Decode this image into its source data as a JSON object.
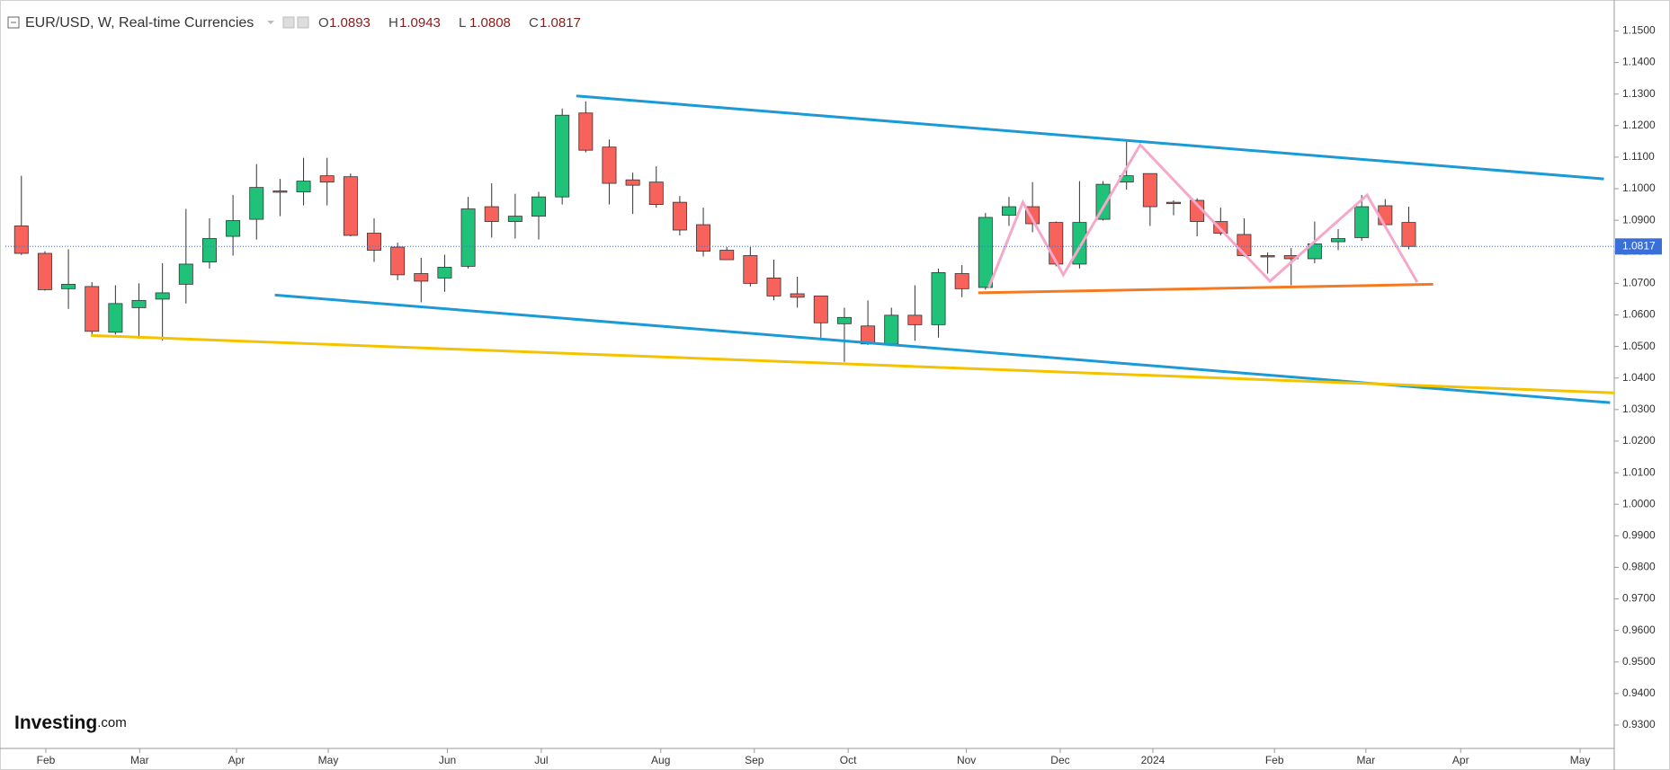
{
  "chart_data": {
    "type": "candlestick",
    "title": "EUR/USD, W, Real-time Currencies",
    "ohlc_labels": [
      "O",
      "H",
      "L",
      "C"
    ],
    "watermark": [
      "Investing",
      ".com"
    ],
    "up_color": "#20c27a",
    "down_color": "#f7625b",
    "open": [
      1.0882,
      1.0795,
      1.0683,
      1.069,
      1.0545,
      1.0623,
      1.065,
      1.0697,
      1.0768,
      1.0849,
      1.0903,
      1.0993,
      1.099,
      1.1041,
      1.1038,
      1.0859,
      1.0815,
      1.0731,
      1.0717,
      1.0754,
      1.0943,
      1.0896,
      1.0913,
      1.0974,
      1.124,
      1.1132,
      1.1028,
      1.1021,
      1.0957,
      1.0886,
      1.0805,
      1.0788,
      1.0717,
      1.0667,
      1.066,
      1.0572,
      1.0565,
      1.0508,
      1.0599,
      1.0569,
      1.0731,
      1.0687,
      1.0916,
      1.0943,
      1.0893,
      1.0761,
      1.0903,
      1.1021,
      1.1048,
      1.0957,
      1.0963,
      1.0896,
      1.0855,
      1.0788,
      1.0788,
      1.0778,
      1.0832,
      1.0845,
      1.0946,
      1.0893
    ],
    "high": [
      1.1041,
      1.0802,
      1.0808,
      1.0704,
      1.0694,
      1.07,
      1.0764,
      1.0936,
      1.0906,
      1.098,
      1.1078,
      1.1031,
      1.1098,
      1.1098,
      1.1048,
      1.0906,
      1.0829,
      1.0781,
      1.0791,
      1.0974,
      1.1017,
      1.0984,
      1.099,
      1.1254,
      1.1277,
      1.1156,
      1.1051,
      1.1071,
      1.0977,
      1.094,
      1.0815,
      1.0815,
      1.0775,
      1.0721,
      1.066,
      1.0623,
      1.0646,
      1.0623,
      1.0694,
      1.0747,
      1.0758,
      1.0923,
      1.0974,
      1.1021,
      1.0896,
      1.1024,
      1.1024,
      1.1149,
      1.1048,
      1.0963,
      1.097,
      1.094,
      1.0906,
      1.0798,
      1.0812,
      1.0896,
      1.0872,
      1.098,
      1.0967,
      1.0943
    ],
    "low": [
      1.079,
      1.0677,
      1.0619,
      1.0535,
      1.0538,
      1.0525,
      1.0518,
      1.0636,
      1.0747,
      1.0788,
      1.0839,
      1.0913,
      1.0947,
      1.0947,
      1.0849,
      1.0768,
      1.071,
      1.064,
      1.0673,
      1.0747,
      1.0845,
      1.0842,
      1.0839,
      1.095,
      1.1115,
      1.095,
      1.092,
      1.094,
      1.0852,
      1.0785,
      1.0775,
      1.069,
      1.0646,
      1.0623,
      1.0528,
      1.0451,
      1.0505,
      1.0501,
      1.0518,
      1.0528,
      1.0656,
      1.068,
      1.0882,
      1.0862,
      1.0754,
      1.0747,
      1.0899,
      1.0997,
      1.0882,
      1.0916,
      1.0849,
      1.0852,
      1.0785,
      1.0731,
      1.0694,
      1.0764,
      1.0805,
      1.0835,
      1.0882,
      1.0808
    ],
    "close": [
      1.0795,
      1.068,
      1.0697,
      1.0548,
      1.0636,
      1.0646,
      1.067,
      1.0761,
      1.0842,
      1.0899,
      1.1004,
      1.099,
      1.1024,
      1.1021,
      1.0852,
      1.0805,
      1.0727,
      1.0707,
      1.0751,
      1.0936,
      1.0896,
      1.0913,
      1.0974,
      1.1233,
      1.1122,
      1.1017,
      1.1011,
      1.095,
      1.0869,
      1.0802,
      1.0775,
      1.07,
      1.066,
      1.0656,
      1.0575,
      1.0592,
      1.0508,
      1.0599,
      1.0569,
      1.0734,
      1.0683,
      1.0909,
      1.0943,
      1.0889,
      1.0761,
      1.0893,
      1.1014,
      1.1041,
      1.0943,
      1.0953,
      1.0896,
      1.0859,
      1.0788,
      1.0785,
      1.0778,
      1.0825,
      1.0842,
      1.0943,
      1.0886,
      1.0817
    ],
    "xlim": [
      -0.68,
      67.74
    ],
    "xticks": [
      {
        "value": 1.04,
        "label": "Feb"
      },
      {
        "value": 5.03,
        "label": "Mar"
      },
      {
        "value": 9.15,
        "label": "Apr"
      },
      {
        "value": 13.05,
        "label": "May"
      },
      {
        "value": 18.12,
        "label": "Jun"
      },
      {
        "value": 22.11,
        "label": "Jul"
      },
      {
        "value": 27.19,
        "label": "Aug"
      },
      {
        "value": 31.17,
        "label": "Sep"
      },
      {
        "value": 35.16,
        "label": "Oct"
      },
      {
        "value": 40.19,
        "label": "Nov"
      },
      {
        "value": 44.18,
        "label": "Dec"
      },
      {
        "value": 48.12,
        "label": "2024"
      },
      {
        "value": 53.29,
        "label": "Feb"
      },
      {
        "value": 57.18,
        "label": "Mar"
      },
      {
        "value": 61.21,
        "label": "Apr"
      },
      {
        "value": 66.29,
        "label": "May"
      }
    ],
    "ylim": [
      0.9226,
      1.1581
    ],
    "yticks": [
      {
        "value": 1.15,
        "label": "1.1500"
      },
      {
        "value": 1.14,
        "label": "1.1400"
      },
      {
        "value": 1.13,
        "label": "1.1300"
      },
      {
        "value": 1.12,
        "label": "1.1200"
      },
      {
        "value": 1.11,
        "label": "1.1100"
      },
      {
        "value": 1.1,
        "label": "1.1000"
      },
      {
        "value": 1.09,
        "label": "1.0900"
      },
      {
        "value": 1.08,
        "label": "1.0800"
      },
      {
        "value": 1.07,
        "label": "1.0700"
      },
      {
        "value": 1.06,
        "label": "1.0600"
      },
      {
        "value": 1.05,
        "label": "1.0500"
      },
      {
        "value": 1.04,
        "label": "1.0400"
      },
      {
        "value": 1.03,
        "label": "1.0300"
      },
      {
        "value": 1.02,
        "label": "1.0200"
      },
      {
        "value": 1.01,
        "label": "1.0100"
      },
      {
        "value": 1.0,
        "label": "1.0000"
      },
      {
        "value": 0.99,
        "label": "0.9900"
      },
      {
        "value": 0.98,
        "label": "0.9800"
      },
      {
        "value": 0.97,
        "label": "0.9700"
      },
      {
        "value": 0.96,
        "label": "0.9600"
      },
      {
        "value": 0.95,
        "label": "0.9500"
      },
      {
        "value": 0.94,
        "label": "0.9400"
      },
      {
        "value": 0.93,
        "label": "0.9300"
      }
    ],
    "lines": [
      {
        "color": "#1b9ad6",
        "x": [
          23.6,
          67.3
        ],
        "y": [
          1.1294,
          1.1031
        ]
      },
      {
        "color": "#1b9ad6",
        "x": [
          10.78,
          67.56
        ],
        "y": [
          1.0663,
          1.0322
        ]
      },
      {
        "color": "#f5c200",
        "x": [
          2.95,
          67.74
        ],
        "y": [
          1.0535,
          1.0353
        ]
      },
      {
        "color": "#f47a22",
        "x": [
          40.69,
          60.04
        ],
        "y": [
          1.067,
          1.0697
        ]
      },
      {
        "color": "#f5a8c9",
        "x": [
          41.14,
          42.59,
          44.31,
          47.58,
          53.1,
          57.23,
          59.36
        ],
        "y": [
          1.0687,
          1.0957,
          1.0727,
          1.1139,
          1.0707,
          1.098,
          1.0704
        ]
      }
    ],
    "last_price_color": "#3a6fd8"
  }
}
